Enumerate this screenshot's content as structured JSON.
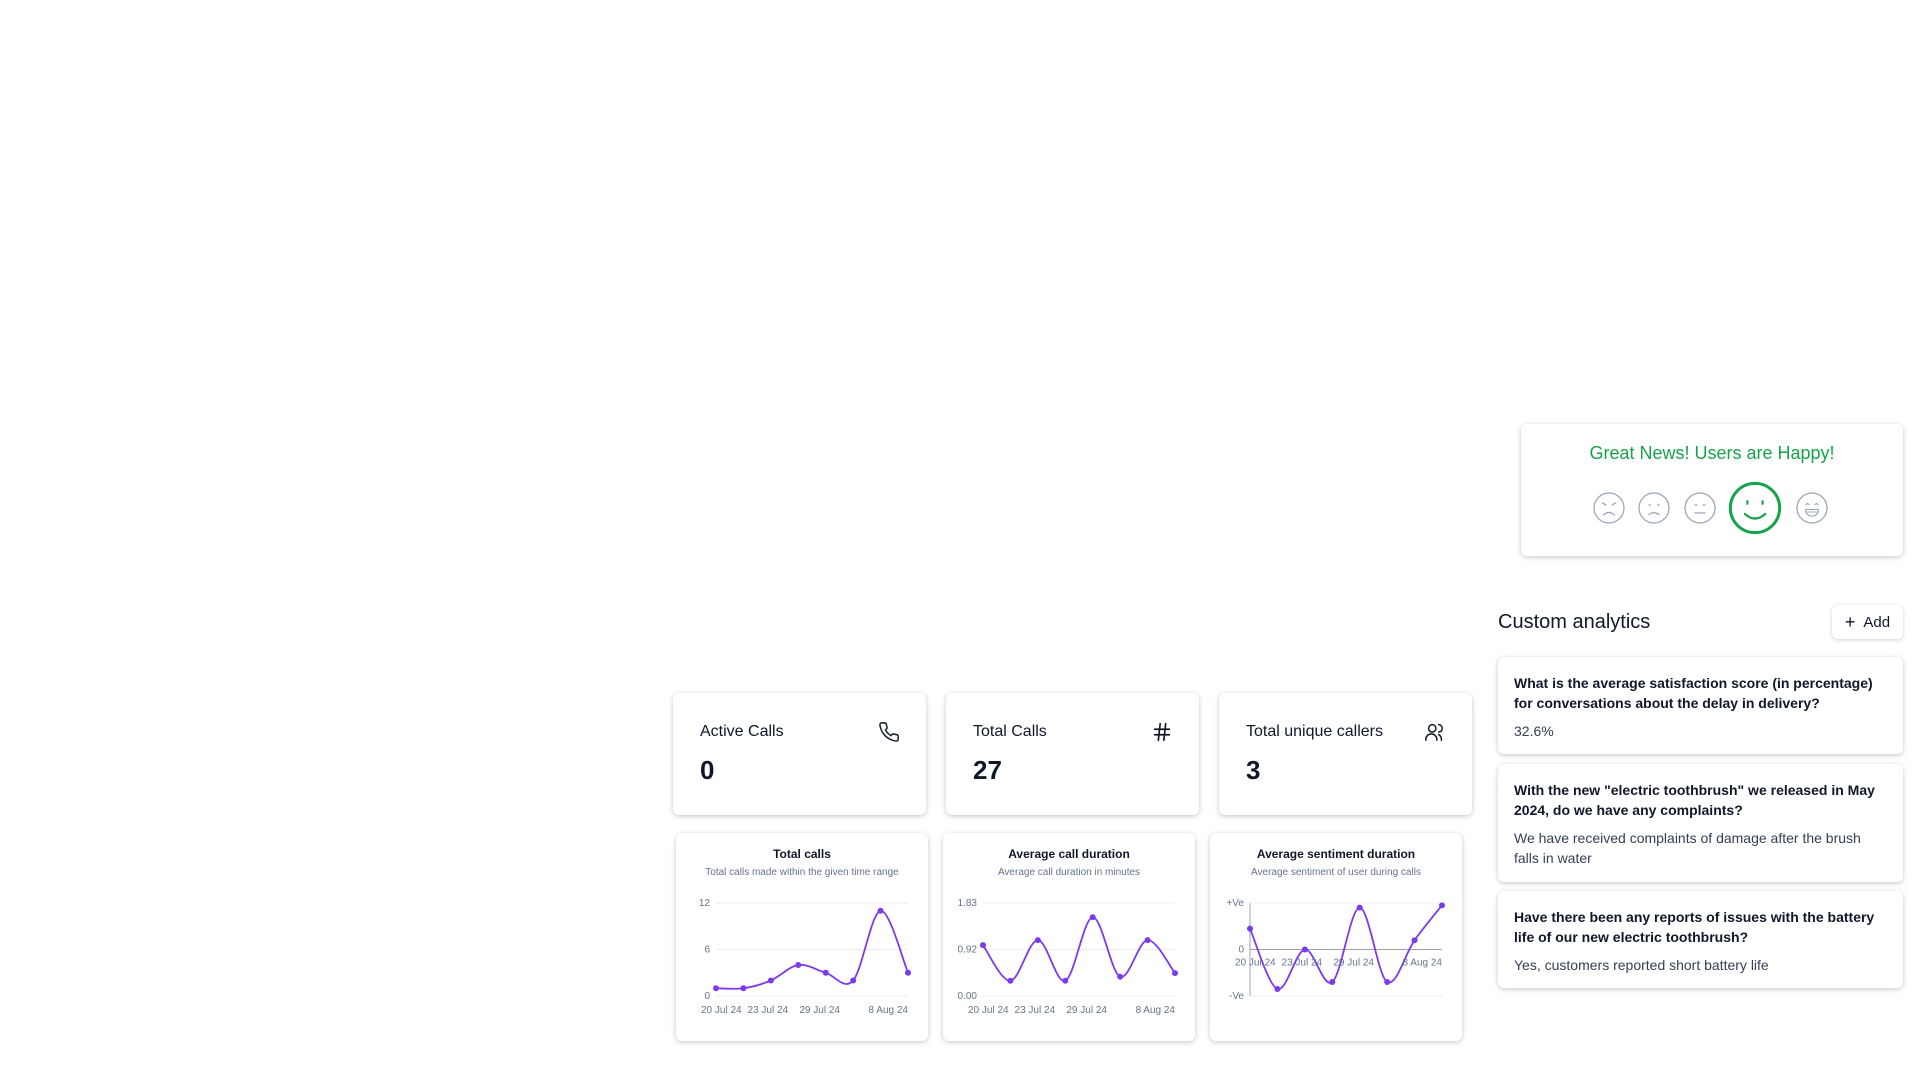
{
  "sentiment": {
    "title": "Great News! Users are Happy!",
    "selected_index": 3,
    "faces": [
      "angry-face-icon",
      "sad-face-icon",
      "neutral-face-icon",
      "happy-face-icon",
      "very-happy-face-icon"
    ],
    "accent": "#16a34a",
    "muted": "#94a3b8"
  },
  "custom_analytics": {
    "title": "Custom analytics",
    "add_label": "Add",
    "items": [
      {
        "question": "What is the average satisfaction score (in percentage) for conversations about the delay in delivery?",
        "answer": "32.6%"
      },
      {
        "question": "With the new \"electric toothbrush\" we released in May 2024, do we have any complaints?",
        "answer": "We have received complaints of damage after the brush falls in water"
      },
      {
        "question": "Have there been any reports of issues with the battery life of our new electric toothbrush?",
        "answer": "Yes, customers reported short battery life"
      }
    ]
  },
  "stats": [
    {
      "label": "Active Calls",
      "value": "0",
      "icon": "phone-icon"
    },
    {
      "label": "Total Calls",
      "value": "27",
      "icon": "hash-icon"
    },
    {
      "label": "Total unique callers",
      "value": "3",
      "icon": "users-icon"
    }
  ],
  "chart_data": [
    {
      "type": "line",
      "title": "Total calls",
      "subtitle": "Total calls made within the given time range",
      "x_labels": [
        "20 Jul 24",
        "23 Jul 24",
        "29 Jul 24",
        "8 Aug 24"
      ],
      "y_ticks": [
        "12",
        "6",
        "0"
      ],
      "ylim": [
        0,
        12
      ],
      "values": [
        1,
        1,
        2,
        4,
        3,
        2,
        11,
        3
      ],
      "line_color": "#7c3aed",
      "grid": true
    },
    {
      "type": "line",
      "title": "Average call duration",
      "subtitle": "Average call duration in minutes",
      "x_labels": [
        "20 Jul 24",
        "23 Jul 24",
        "29 Jul 24",
        "8 Aug 24"
      ],
      "y_ticks": [
        "1.83",
        "0.92",
        "0.00"
      ],
      "ylim": [
        0,
        1.83
      ],
      "values": [
        1.0,
        0.3,
        1.1,
        0.3,
        1.55,
        0.38,
        1.1,
        0.45
      ],
      "line_color": "#7c3aed",
      "grid": true
    },
    {
      "type": "line",
      "title": "Average sentiment duration",
      "subtitle": "Average sentiment of user during calls",
      "x_labels": [
        "20 Jul 24",
        "23 Jul 24",
        "29 Jul 24",
        "8 Aug 24"
      ],
      "y_ticks": [
        "+Ve",
        "0",
        "-Ve"
      ],
      "ylim": [
        -1,
        1
      ],
      "values": [
        0.45,
        -0.85,
        0.0,
        -0.7,
        0.9,
        -0.7,
        0.2,
        0.95
      ],
      "line_color": "#7c3aed",
      "grid": true
    }
  ]
}
